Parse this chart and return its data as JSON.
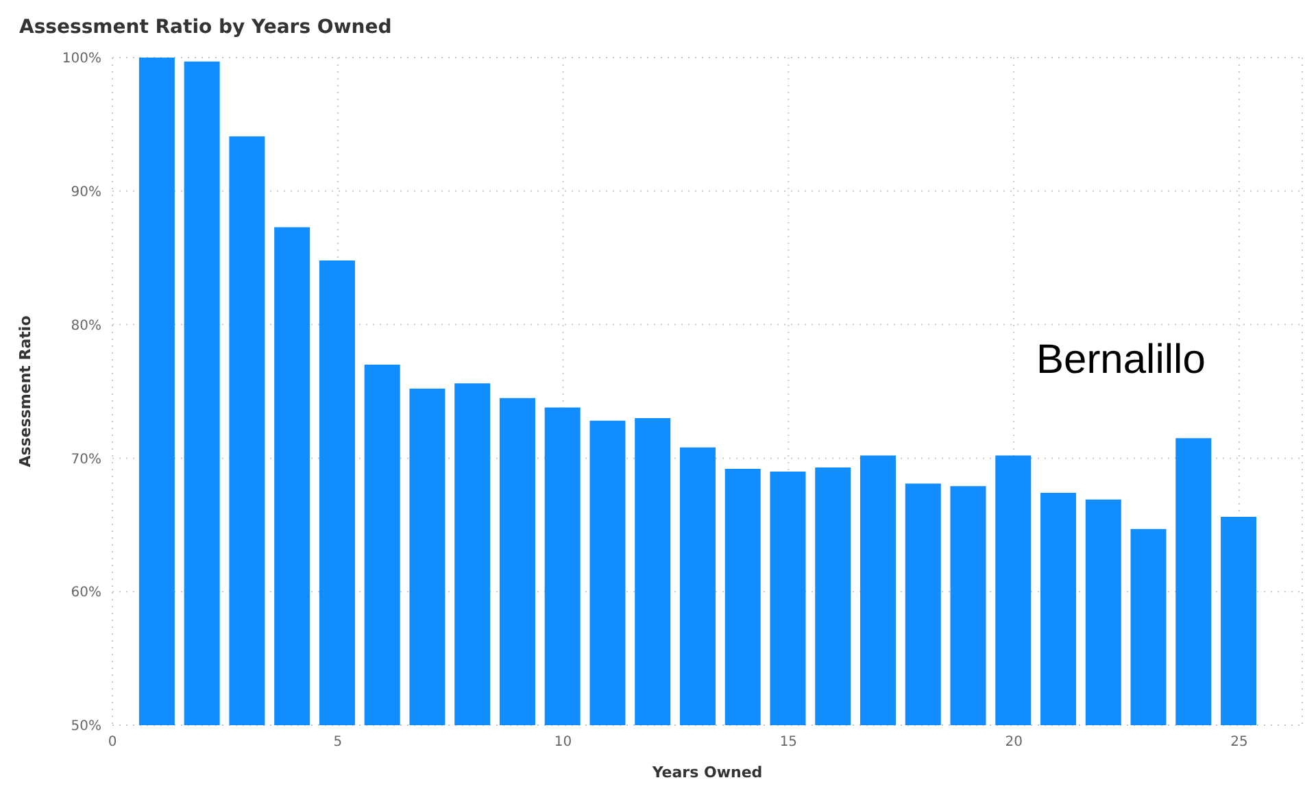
{
  "chart_data": {
    "type": "bar",
    "title": "Assessment Ratio by Years Owned",
    "xlabel": "Years Owned",
    "ylabel": "Assessment Ratio",
    "annotations": [
      "Bernalillo"
    ],
    "x": [
      1,
      2,
      3,
      4,
      5,
      6,
      7,
      8,
      9,
      10,
      11,
      12,
      13,
      14,
      15,
      16,
      17,
      18,
      19,
      20,
      21,
      22,
      23,
      24,
      25
    ],
    "values": [
      100,
      99.7,
      94.1,
      87.3,
      84.8,
      77.0,
      75.2,
      75.6,
      74.5,
      73.8,
      72.8,
      73.0,
      70.8,
      69.2,
      69.0,
      69.3,
      70.2,
      68.1,
      67.9,
      70.2,
      67.4,
      66.9,
      64.7,
      71.5,
      65.6
    ],
    "color": "#118dff",
    "xlim": [
      0,
      26.4
    ],
    "xticks": [
      0,
      5,
      10,
      15,
      20,
      25
    ],
    "ylim": [
      50,
      100
    ],
    "yticks": [
      {
        "value": 50,
        "label": "50%"
      },
      {
        "value": 60,
        "label": "60%"
      },
      {
        "value": 70,
        "label": "70%"
      },
      {
        "value": 80,
        "label": "80%"
      },
      {
        "value": 90,
        "label": "90%"
      },
      {
        "value": 100,
        "label": "100%"
      }
    ],
    "grid": true
  }
}
